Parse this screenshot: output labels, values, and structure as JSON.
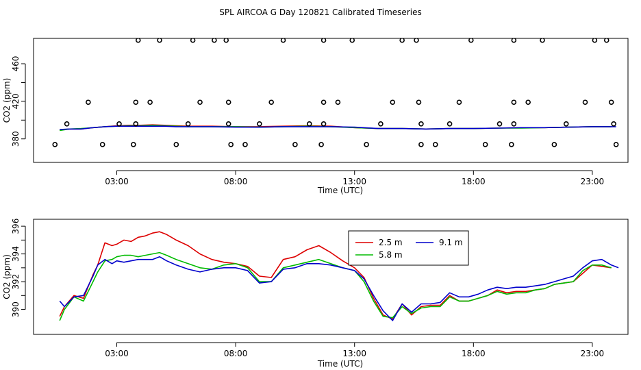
{
  "title": "SPL AIRCOA G  Day 120821  Calibrated Timeseries",
  "colors": {
    "s25": "#dd0000",
    "s58": "#00bb00",
    "s91": "#0000cc",
    "flag": "#000000"
  },
  "chart_data": [
    {
      "type": "scatter+line",
      "panel": "top",
      "xlabel": "Time (UTC)",
      "ylabel": "CO2 (ppm)",
      "xlim": [
        -0.5,
        24.5
      ],
      "ylim": [
        355,
        487
      ],
      "x_ticks": [
        3,
        8,
        13,
        18,
        23
      ],
      "x_tick_labels": [
        "03:00",
        "08:00",
        "13:00",
        "18:00",
        "23:00"
      ],
      "y_ticks": [
        380,
        420,
        460
      ],
      "y_tick_labels": [
        "380",
        "420",
        "460"
      ],
      "lines": [
        {
          "name": "2.5 m",
          "color_key": "s25",
          "x": [
            0.6,
            1.0,
            1.5,
            2.0,
            2.5,
            3.0,
            3.5,
            4.0,
            4.5,
            5.0,
            5.5,
            6.0,
            7.0,
            8.0,
            9.0,
            10.0,
            11.0,
            12.0,
            13.0,
            14.0,
            15.0,
            16.0,
            17.0,
            18.0,
            19.0,
            20.0,
            21.0,
            22.0,
            23.0,
            23.8
          ],
          "y": [
            389.5,
            390.5,
            390.5,
            392,
            393,
            394,
            394.5,
            394.5,
            395,
            394.5,
            394,
            393.5,
            393.5,
            393,
            393,
            393.5,
            394,
            393.5,
            392,
            391,
            391,
            390.5,
            391,
            391,
            391.5,
            392,
            392,
            392.5,
            393,
            393
          ]
        },
        {
          "name": "5.8 m",
          "color_key": "s58",
          "x": [
            0.6,
            1.0,
            1.5,
            2.0,
            2.5,
            3.0,
            3.5,
            4.0,
            4.5,
            5.0,
            5.5,
            6.0,
            7.0,
            8.0,
            9.0,
            10.0,
            11.0,
            12.0,
            13.0,
            14.0,
            15.0,
            16.0,
            17.0,
            18.0,
            19.0,
            20.0,
            21.0,
            22.0,
            23.0,
            23.8
          ],
          "y": [
            389,
            390.5,
            391,
            392,
            393,
            393.5,
            394,
            394,
            394.5,
            394,
            393.5,
            393,
            393,
            393,
            392.5,
            393,
            393.5,
            393,
            392,
            391,
            391,
            390.5,
            391,
            391,
            391.5,
            391.5,
            392,
            392.5,
            393,
            393
          ]
        },
        {
          "name": "9.1 m",
          "color_key": "s91",
          "x": [
            0.6,
            1.0,
            1.5,
            2.0,
            2.5,
            3.0,
            3.5,
            4.0,
            4.5,
            5.0,
            5.5,
            6.0,
            7.0,
            8.0,
            9.0,
            10.0,
            11.0,
            12.0,
            13.0,
            14.0,
            15.0,
            16.0,
            17.0,
            18.0,
            19.0,
            20.0,
            21.0,
            22.0,
            23.0,
            24.0
          ],
          "y": [
            390,
            390.5,
            390.5,
            392,
            393,
            393.5,
            393.5,
            393.5,
            393.5,
            393.5,
            393,
            393,
            393,
            392.5,
            392.5,
            393,
            393,
            393,
            392.5,
            391,
            391,
            390.5,
            391,
            391,
            391.5,
            392,
            392,
            392.5,
            393,
            393
          ]
        }
      ],
      "points": {
        "x": [
          3.9,
          4.8,
          6.2,
          7.1,
          7.6,
          10.0,
          11.7,
          12.9,
          15.0,
          15.6,
          17.9,
          19.7,
          20.9,
          23.1,
          23.6,
          1.8,
          3.8,
          4.4,
          6.5,
          7.7,
          9.5,
          11.7,
          12.3,
          14.6,
          15.7,
          17.4,
          19.7,
          20.3,
          22.7,
          23.8,
          0.9,
          3.1,
          3.8,
          6.0,
          7.7,
          9.0,
          11.1,
          11.7,
          14.1,
          15.8,
          17.0,
          19.1,
          19.7,
          21.9,
          23.9,
          0.4,
          2.4,
          3.7,
          5.5,
          7.8,
          8.4,
          10.5,
          11.6,
          13.5,
          15.8,
          16.4,
          18.5,
          19.6,
          21.4,
          24.0
        ],
        "y": [
          485,
          485,
          485,
          485,
          485,
          485,
          485,
          485,
          485,
          485,
          485,
          485,
          485,
          485,
          485,
          419,
          419,
          419,
          419,
          419,
          419,
          419,
          419,
          419,
          419,
          419,
          419,
          419,
          419,
          419,
          396,
          396,
          396,
          396,
          396,
          396,
          396,
          396,
          396,
          396,
          396,
          396,
          396,
          396,
          396,
          374,
          374,
          374,
          374,
          374,
          374,
          374,
          374,
          374,
          374,
          374,
          374,
          374,
          374,
          374
        ]
      }
    },
    {
      "type": "line",
      "panel": "bottom",
      "xlabel": "Time (UTC)",
      "ylabel": "CO2 (ppm)",
      "xlim": [
        -0.5,
        24.5
      ],
      "ylim": [
        388.2,
        396.5
      ],
      "x_ticks": [
        3,
        8,
        13,
        18,
        23
      ],
      "x_tick_labels": [
        "03:00",
        "08:00",
        "13:00",
        "18:00",
        "23:00"
      ],
      "y_ticks": [
        390,
        392,
        394,
        396
      ],
      "y_tick_labels": [
        "390",
        "392",
        "394",
        "396"
      ],
      "legend": {
        "placement": "top-center",
        "entries": [
          {
            "label": "2.5 m",
            "color_key": "s25"
          },
          {
            "label": "9.1 m",
            "color_key": "s91"
          },
          {
            "label": "5.8 m",
            "color_key": "s58"
          }
        ]
      },
      "series": [
        {
          "name": "2.5 m",
          "color_key": "s25",
          "x": [
            0.6,
            0.8,
            1.2,
            1.6,
            2.0,
            2.2,
            2.5,
            2.8,
            3.0,
            3.3,
            3.6,
            3.9,
            4.2,
            4.5,
            4.8,
            5.1,
            5.5,
            6.0,
            6.5,
            7.0,
            7.5,
            8.0,
            8.5,
            9.0,
            9.5,
            10.0,
            10.5,
            11.0,
            11.5,
            12.0,
            12.5,
            13.0,
            13.4,
            13.8,
            14.2,
            14.6,
            15.0,
            15.4,
            15.8,
            16.2,
            16.6,
            17.0,
            17.4,
            17.8,
            18.2,
            18.6,
            19.0,
            19.4,
            19.8,
            20.2,
            20.6,
            21.0,
            21.4,
            21.8,
            22.2,
            22.6,
            23.0,
            23.4,
            23.8
          ],
          "y": [
            389.5,
            390.2,
            391.0,
            390.8,
            392.5,
            393.2,
            394.8,
            394.6,
            394.7,
            395.0,
            394.9,
            395.2,
            395.3,
            395.5,
            395.6,
            395.4,
            395.0,
            394.6,
            394.0,
            393.6,
            393.4,
            393.3,
            393.1,
            392.4,
            392.3,
            393.6,
            393.8,
            394.3,
            394.6,
            394.1,
            393.5,
            393.0,
            392.3,
            390.8,
            389.6,
            389.3,
            390.4,
            389.6,
            390.2,
            390.3,
            390.3,
            391.0,
            390.6,
            390.6,
            390.8,
            391.0,
            391.4,
            391.2,
            391.3,
            391.3,
            391.4,
            391.5,
            391.8,
            391.9,
            392.0,
            392.6,
            393.2,
            393.1,
            393.0
          ]
        },
        {
          "name": "5.8 m",
          "color_key": "s58",
          "x": [
            0.6,
            0.8,
            1.2,
            1.6,
            2.0,
            2.2,
            2.5,
            2.8,
            3.0,
            3.3,
            3.6,
            3.9,
            4.2,
            4.5,
            4.8,
            5.1,
            5.5,
            6.0,
            6.5,
            7.0,
            7.5,
            8.0,
            8.5,
            9.0,
            9.5,
            10.0,
            10.5,
            11.0,
            11.5,
            12.0,
            12.5,
            13.0,
            13.4,
            13.8,
            14.2,
            14.6,
            15.0,
            15.4,
            15.8,
            16.2,
            16.6,
            17.0,
            17.4,
            17.8,
            18.2,
            18.6,
            19.0,
            19.4,
            19.8,
            20.2,
            20.6,
            21.0,
            21.4,
            21.8,
            22.2,
            22.6,
            23.0,
            23.4,
            23.8
          ],
          "y": [
            389.2,
            390.0,
            390.9,
            390.6,
            392.0,
            392.7,
            393.5,
            393.6,
            393.8,
            393.9,
            393.9,
            393.8,
            393.9,
            394.0,
            394.1,
            393.9,
            393.6,
            393.3,
            393.0,
            392.9,
            393.2,
            393.3,
            393.0,
            392.0,
            392.0,
            393.0,
            393.2,
            393.4,
            393.6,
            393.3,
            393.0,
            392.8,
            392.0,
            390.6,
            389.5,
            389.4,
            390.2,
            389.7,
            390.1,
            390.2,
            390.2,
            390.9,
            390.6,
            390.6,
            390.8,
            391.0,
            391.3,
            391.1,
            391.2,
            391.2,
            391.4,
            391.5,
            391.8,
            391.9,
            392.0,
            392.8,
            393.2,
            393.2,
            393.0
          ]
        },
        {
          "name": "9.1 m",
          "color_key": "s91",
          "x": [
            0.6,
            0.8,
            1.2,
            1.6,
            2.0,
            2.2,
            2.5,
            2.8,
            3.0,
            3.3,
            3.6,
            3.9,
            4.2,
            4.5,
            4.8,
            5.1,
            5.5,
            6.0,
            6.5,
            7.0,
            7.5,
            8.0,
            8.5,
            9.0,
            9.5,
            10.0,
            10.5,
            11.0,
            11.5,
            12.0,
            12.5,
            13.0,
            13.4,
            13.8,
            14.2,
            14.6,
            15.0,
            15.4,
            15.8,
            16.2,
            16.6,
            17.0,
            17.4,
            17.8,
            18.2,
            18.6,
            19.0,
            19.4,
            19.8,
            20.2,
            20.6,
            21.0,
            21.4,
            21.8,
            22.2,
            22.6,
            23.0,
            23.4,
            23.8,
            24.1
          ],
          "y": [
            390.6,
            390.2,
            390.9,
            391.0,
            392.4,
            393.2,
            393.6,
            393.3,
            393.5,
            393.4,
            393.5,
            393.6,
            393.6,
            393.6,
            393.8,
            393.5,
            393.2,
            392.9,
            392.7,
            392.9,
            393.0,
            393.0,
            392.8,
            391.9,
            392.0,
            392.9,
            393.0,
            393.3,
            393.3,
            393.2,
            393.0,
            392.8,
            392.2,
            391.0,
            389.9,
            389.2,
            390.4,
            389.8,
            390.4,
            390.4,
            390.5,
            391.2,
            390.9,
            390.9,
            391.1,
            391.4,
            391.6,
            391.5,
            391.6,
            391.6,
            391.7,
            391.8,
            392.0,
            392.2,
            392.4,
            393.0,
            393.5,
            393.6,
            393.2,
            393.0
          ]
        }
      ]
    }
  ]
}
